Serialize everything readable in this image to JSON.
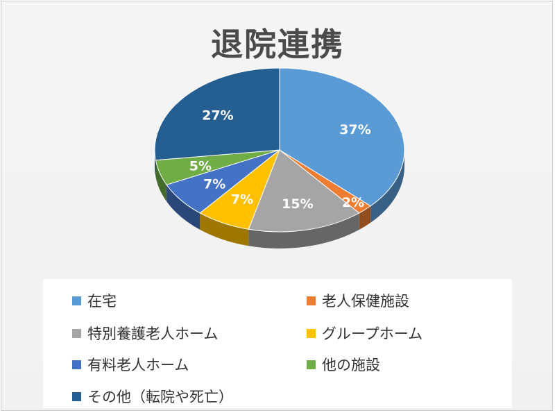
{
  "chart_data": {
    "type": "pie",
    "title": "退院連携",
    "slices": [
      {
        "label": "在宅",
        "value": 37,
        "data_label": "37%",
        "color": "#5b9bd5"
      },
      {
        "label": "老人保健施設",
        "value": 2,
        "data_label": "2%",
        "color": "#ed7d31"
      },
      {
        "label": "特別養護老人ホーム",
        "value": 15,
        "data_label": "15%",
        "color": "#a5a5a5"
      },
      {
        "label": "グループホーム",
        "value": 7,
        "data_label": "7%",
        "color": "#ffc000"
      },
      {
        "label": "有料老人ホーム",
        "value": 7,
        "data_label": "7%",
        "color": "#4472c4"
      },
      {
        "label": "他の施設",
        "value": 5,
        "data_label": "5%",
        "color": "#70ad47"
      },
      {
        "label": "その他（転院や死亡）",
        "value": 27,
        "data_label": "27%",
        "color": "#255e91"
      }
    ],
    "legend_position": "bottom",
    "style": "3d"
  }
}
